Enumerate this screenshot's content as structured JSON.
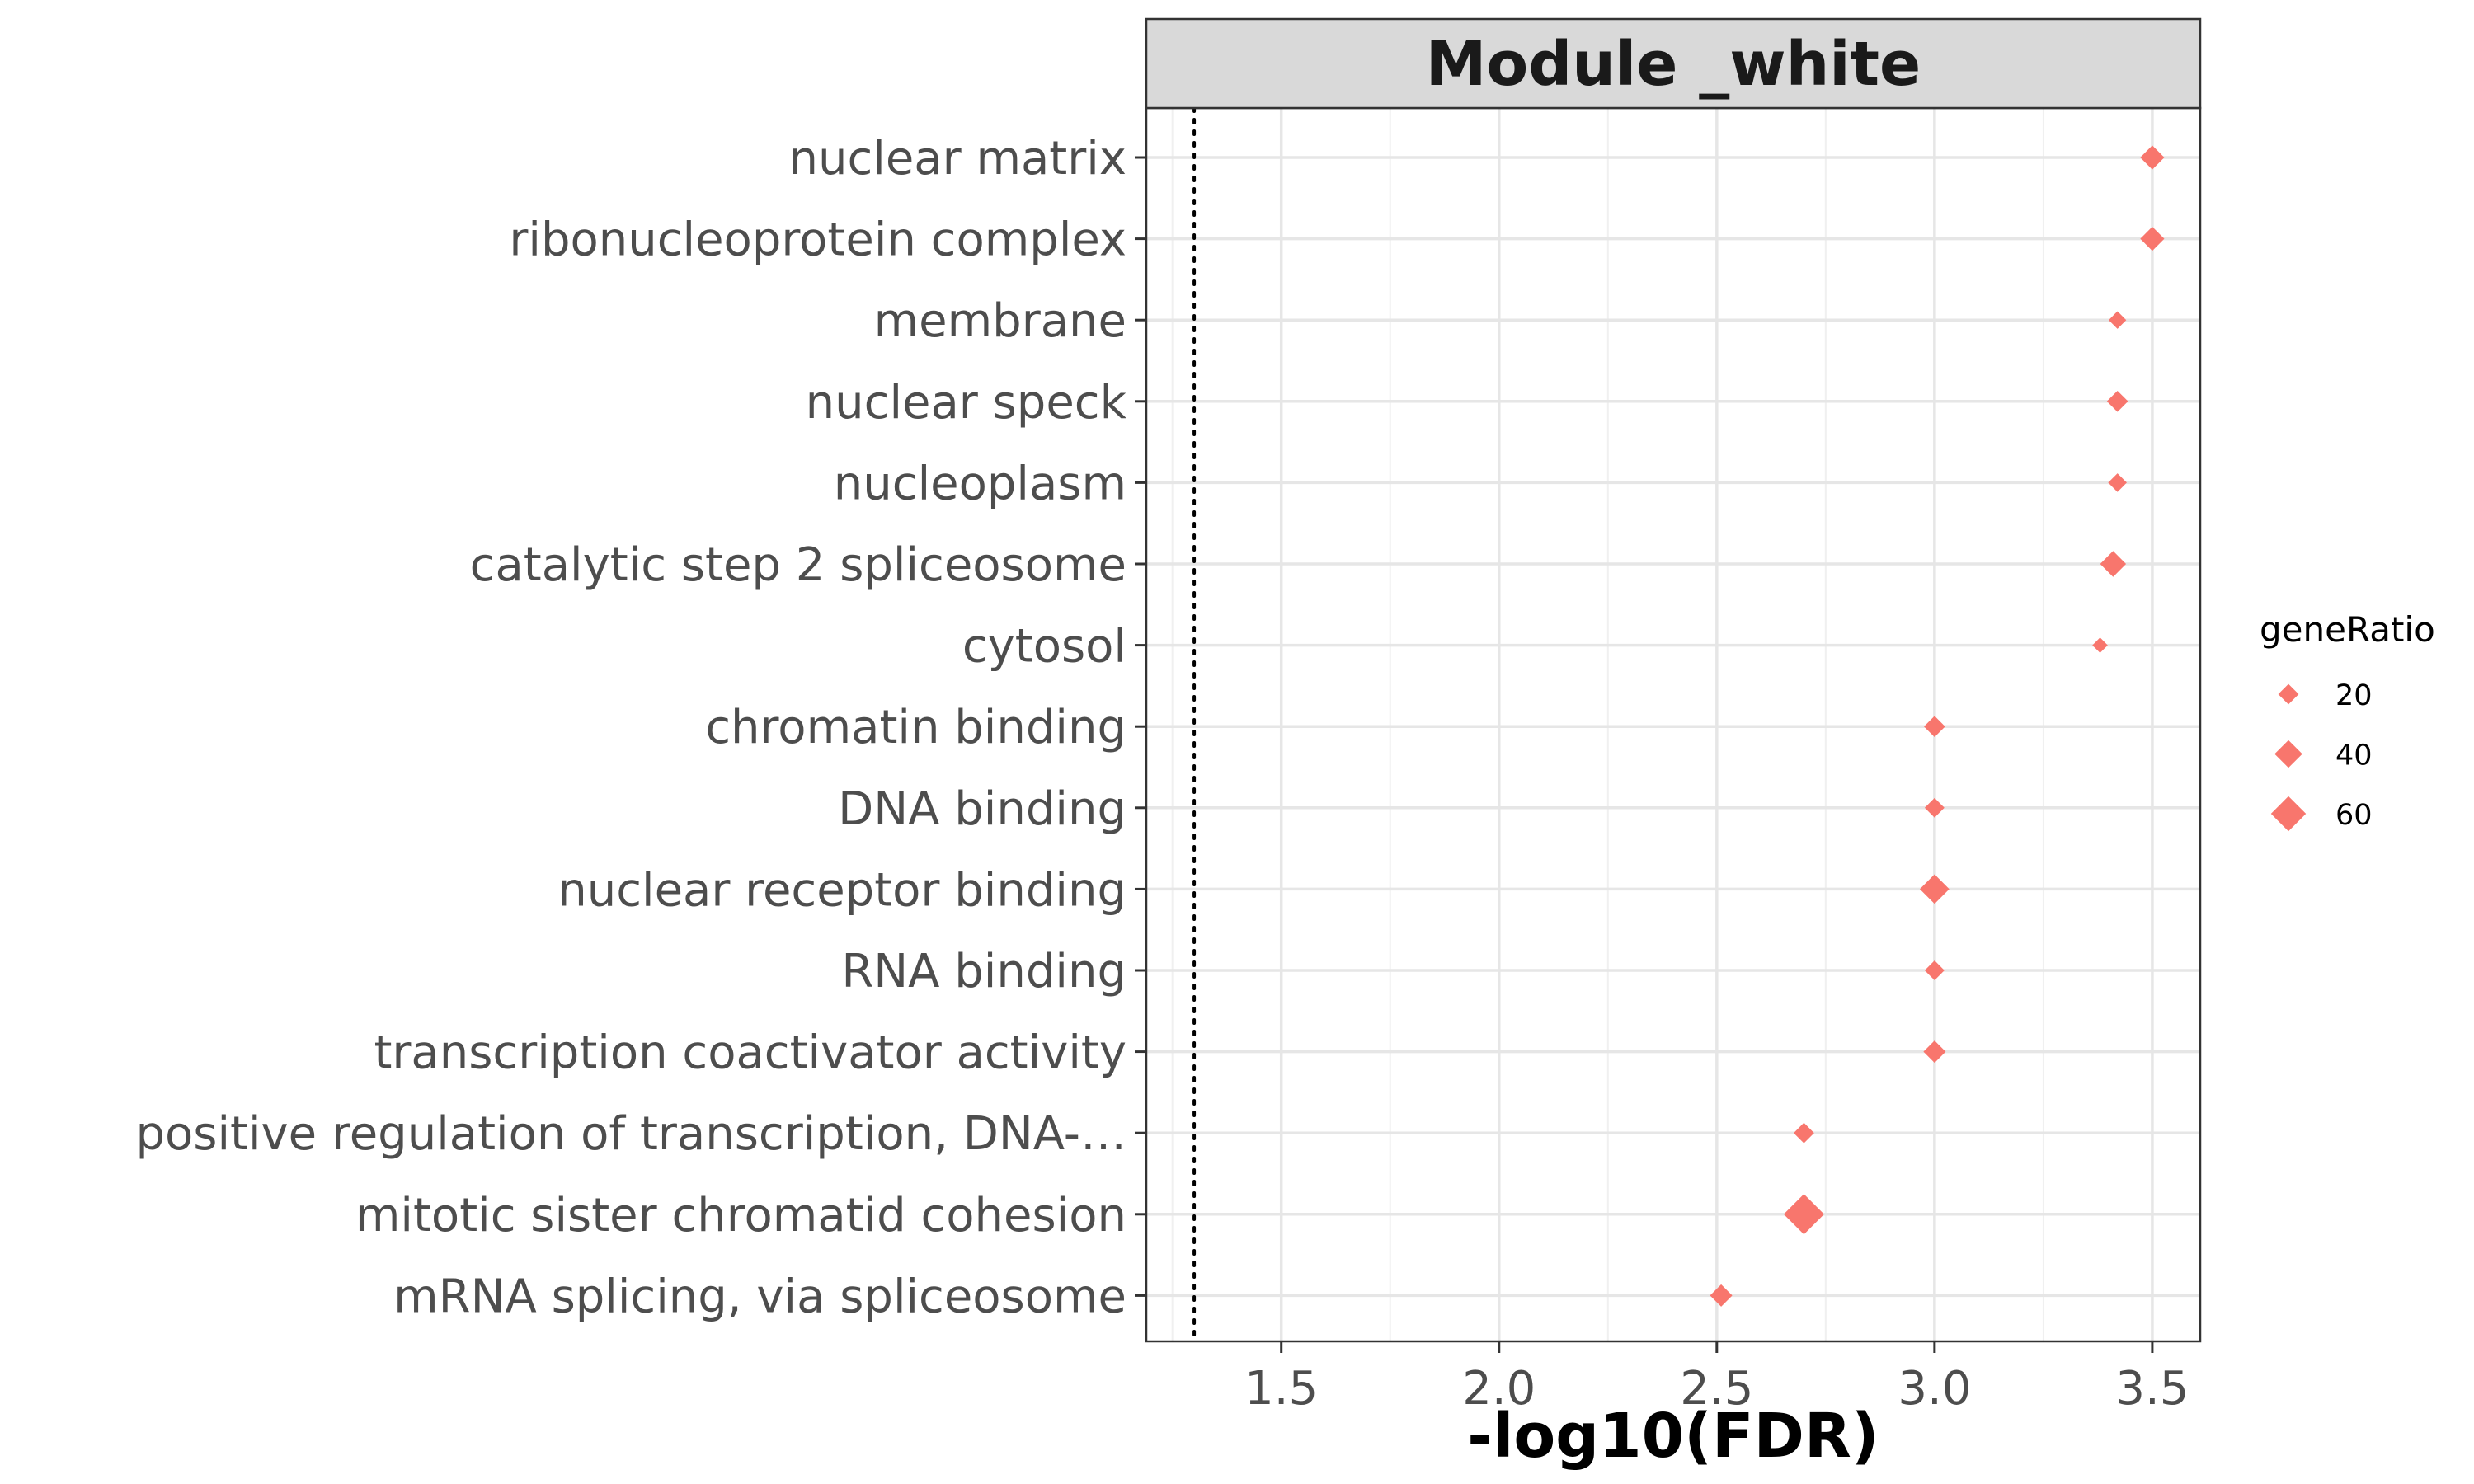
{
  "chart_data": {
    "type": "scatter",
    "title": "Module _white",
    "xlabel": "-log10(FDR)",
    "ylabel": "",
    "xlim": [
      1.19,
      3.61
    ],
    "xticks": [
      "1.5",
      "2.0",
      "2.5",
      "3.0",
      "3.5"
    ],
    "threshold_line": 1.3,
    "grid": true,
    "marker": "diamond",
    "color": "#F8766D",
    "categories": [
      "nuclear matrix",
      "ribonucleoprotein complex",
      "membrane",
      "nuclear speck",
      "nucleoplasm",
      "catalytic step 2 spliceosome",
      "cytosol",
      "chromatin binding",
      "DNA binding",
      "nuclear receptor binding",
      "RNA binding",
      "transcription coactivator activity",
      "positive regulation of transcription, DNA-…",
      "mitotic sister chromatid cohesion",
      "mRNA splicing, via spliceosome"
    ],
    "points": [
      {
        "x": 3.5,
        "geneRatio": 30
      },
      {
        "x": 3.5,
        "geneRatio": 30
      },
      {
        "x": 3.42,
        "geneRatio": 12
      },
      {
        "x": 3.42,
        "geneRatio": 22
      },
      {
        "x": 3.42,
        "geneRatio": 15
      },
      {
        "x": 3.41,
        "geneRatio": 35
      },
      {
        "x": 3.38,
        "geneRatio": 6
      },
      {
        "x": 3.0,
        "geneRatio": 22
      },
      {
        "x": 3.0,
        "geneRatio": 18
      },
      {
        "x": 3.0,
        "geneRatio": 45
      },
      {
        "x": 3.0,
        "geneRatio": 18
      },
      {
        "x": 3.0,
        "geneRatio": 25
      },
      {
        "x": 2.7,
        "geneRatio": 20
      },
      {
        "x": 2.7,
        "geneRatio": 75
      },
      {
        "x": 2.51,
        "geneRatio": 25
      }
    ],
    "legend": {
      "title": "geneRatio",
      "position": "right",
      "entries": [
        20,
        40,
        60
      ]
    }
  }
}
